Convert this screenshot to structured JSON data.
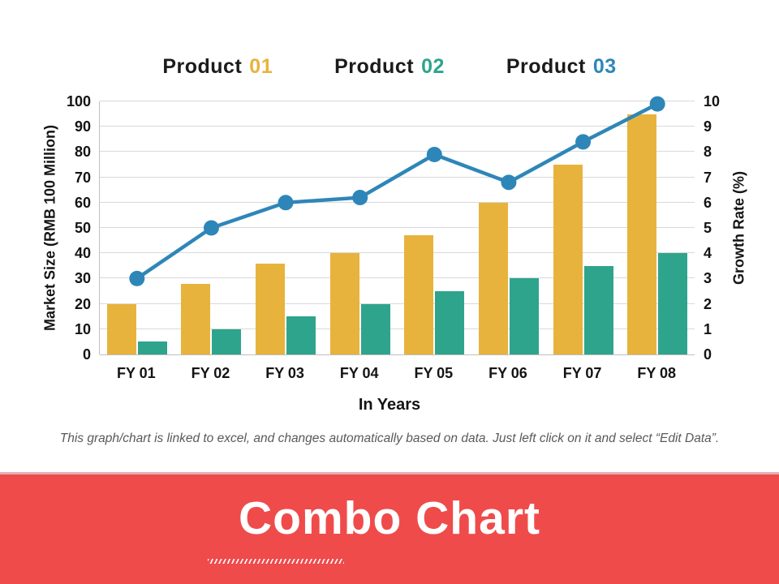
{
  "legend": [
    {
      "label": "Product",
      "number": "01",
      "color": "#E8B33C"
    },
    {
      "label": "Product",
      "number": "02",
      "color": "#2FA48D"
    },
    {
      "label": "Product",
      "number": "03",
      "color": "#2E86B8"
    }
  ],
  "chart_data": {
    "type": "combo",
    "categories": [
      "FY 01",
      "FY 02",
      "FY 03",
      "FY 04",
      "FY 05",
      "FY 06",
      "FY 07",
      "FY 08"
    ],
    "series": [
      {
        "name": "Product 01",
        "type": "bar",
        "axis": "left",
        "color": "#E8B33C",
        "values": [
          20,
          28,
          36,
          40,
          47,
          60,
          75,
          95
        ]
      },
      {
        "name": "Product 02",
        "type": "bar",
        "axis": "left",
        "color": "#2FA48D",
        "values": [
          5,
          10,
          15,
          20,
          25,
          30,
          35,
          40
        ]
      },
      {
        "name": "Product 03",
        "type": "line",
        "axis": "right",
        "color": "#2E86B8",
        "values": [
          3.0,
          5.0,
          6.0,
          6.2,
          7.9,
          6.8,
          8.4,
          9.9
        ]
      }
    ],
    "left_axis": {
      "label": "Market Size (RMB 100 Million)",
      "min": 0,
      "max": 100,
      "step": 10
    },
    "right_axis": {
      "label": "Growth Rate (%)",
      "min": 0,
      "max": 10,
      "step": 1
    },
    "x_axis": {
      "label": "In Years"
    },
    "grid": true,
    "gridline_color": "#D9D9D9"
  },
  "footer_note": "This graph/chart is linked to excel, and changes automatically based on data. Just left click on it and select “Edit Data”.",
  "banner": {
    "title": "Combo Chart",
    "background": "#EF4B4B",
    "text_color": "#FFFFFF"
  }
}
